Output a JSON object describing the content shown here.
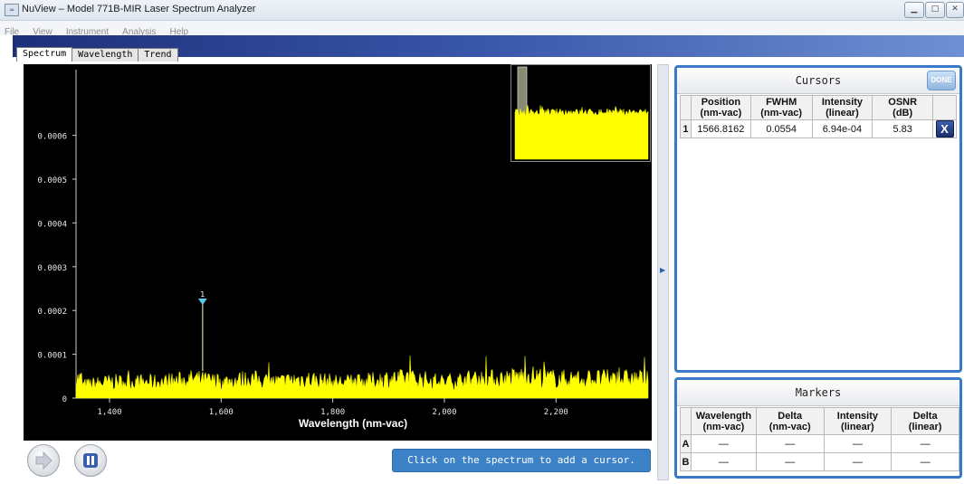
{
  "window": {
    "title": "NuView – Model 771B-MIR Laser Spectrum Analyzer",
    "buttons": [
      "minimize",
      "maximize",
      "close"
    ]
  },
  "menu": [
    "File",
    "View",
    "Instrument",
    "Analysis",
    "Help"
  ],
  "tabs": [
    {
      "label": "Spectrum",
      "active": true
    },
    {
      "label": "Wavelength",
      "active": false
    },
    {
      "label": "Trend",
      "active": false
    }
  ],
  "chart_data": {
    "type": "line",
    "title": "",
    "xlabel": "Wavelength (nm-vac)",
    "ylabel": "",
    "xlim": [
      1340,
      2365
    ],
    "ylim": [
      0,
      0.00075
    ],
    "x_ticks": [
      1400,
      1600,
      1800,
      2000,
      2200
    ],
    "x_tick_labels": [
      "1,400",
      "1,600",
      "1,800",
      "2,000",
      "2,200"
    ],
    "y_ticks": [
      0,
      0.0001,
      0.0002,
      0.0003,
      0.0004,
      0.0005,
      0.0006
    ],
    "y_tick_labels": [
      "0",
      "0.0001",
      "0.0002",
      "0.0003",
      "0.0004",
      "0.0005",
      "0.0006"
    ],
    "series": [
      {
        "color": "#ffff00",
        "description": "noise-like spectrum",
        "baseline": 3e-05,
        "x": [
          1350,
          1400,
          1450,
          1500,
          1550,
          1600,
          1650,
          1700,
          1750,
          1800,
          1850,
          1900,
          1950,
          2000,
          2050,
          2100,
          2150,
          2200,
          2250,
          2300,
          2350
        ],
        "y": [
          4e-05,
          5e-05,
          5e-05,
          5e-05,
          6e-05,
          5e-05,
          6e-05,
          5e-05,
          6e-05,
          5e-05,
          5e-05,
          6e-05,
          6e-05,
          5e-05,
          6e-05,
          6e-05,
          7e-05,
          6e-05,
          6e-05,
          6e-05,
          6e-05
        ]
      }
    ],
    "cursor_marker": {
      "label": "1",
      "x": 1566.8162,
      "y": 0.000215
    },
    "grid": false,
    "background": "#000000"
  },
  "cursors": {
    "title": "Cursors",
    "done_label": "DONE",
    "columns": [
      {
        "line1": "Position",
        "line2": "(nm-vac)"
      },
      {
        "line1": "FWHM",
        "line2": "(nm-vac)"
      },
      {
        "line1": "Intensity",
        "line2": "(linear)"
      },
      {
        "line1": "OSNR",
        "line2": "(dB)"
      }
    ],
    "rows": [
      {
        "index": "1",
        "position": "1566.8162",
        "fwhm": "0.0554",
        "intensity": "6.94e-04",
        "osnr": "5.83",
        "delete_label": "X"
      }
    ]
  },
  "markers": {
    "title": "Markers",
    "columns": [
      {
        "line1": "Wavelength",
        "line2": "(nm-vac)"
      },
      {
        "line1": "Delta",
        "line2": "(nm-vac)"
      },
      {
        "line1": "Intensity",
        "line2": "(linear)"
      },
      {
        "line1": "Delta",
        "line2": "(linear)"
      }
    ],
    "rows": [
      {
        "index": "A",
        "cells": [
          "—",
          "—",
          "—",
          "—"
        ]
      },
      {
        "index": "B",
        "cells": [
          "—",
          "—",
          "—",
          "—"
        ]
      }
    ]
  },
  "bottom": {
    "hint": "Click on the spectrum to add a cursor."
  },
  "colors": {
    "accent": "#3a78c8",
    "trace": "#ffff00",
    "hint_bg": "#3d82c6"
  }
}
